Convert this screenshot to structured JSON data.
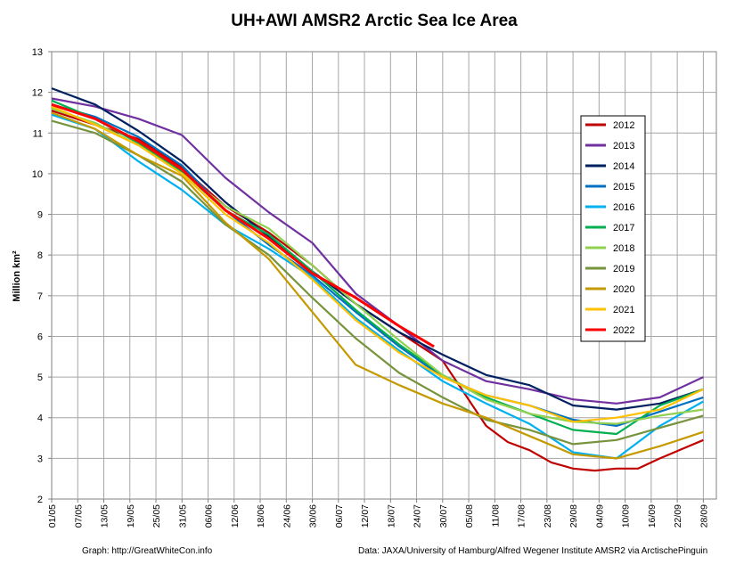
{
  "chart_data": {
    "type": "line",
    "title": "UH+AWI AMSR2 Arctic Sea Ice Area",
    "ylabel": "Million km²",
    "xlabel": "",
    "ylim": [
      2,
      13
    ],
    "y_ticks": [
      "2",
      "3",
      "4",
      "5",
      "6",
      "7",
      "8",
      "9",
      "10",
      "11",
      "12",
      "13"
    ],
    "x_ticks": [
      "01/05",
      "07/05",
      "13/05",
      "19/05",
      "25/05",
      "31/05",
      "06/06",
      "12/06",
      "18/06",
      "24/06",
      "30/06",
      "06/07",
      "12/07",
      "18/07",
      "24/07",
      "30/07",
      "05/08",
      "11/08",
      "17/08",
      "23/08",
      "29/08",
      "04/09",
      "10/09",
      "16/09",
      "22/09",
      "28/09"
    ],
    "grid": true,
    "legend_placement": "right",
    "x_unit": "day of year",
    "x_first_day": "01/05",
    "x_last_day": "01/10",
    "series": [
      {
        "name": "2012",
        "color": "#c00000",
        "points": [
          [
            0,
            11.55
          ],
          [
            10,
            11.2
          ],
          [
            20,
            10.85
          ],
          [
            30,
            10.15
          ],
          [
            40,
            9.2
          ],
          [
            50,
            8.55
          ],
          [
            60,
            7.75
          ],
          [
            70,
            6.8
          ],
          [
            80,
            6.1
          ],
          [
            90,
            5.4
          ],
          [
            95,
            4.6
          ],
          [
            100,
            3.8
          ],
          [
            105,
            3.4
          ],
          [
            110,
            3.2
          ],
          [
            115,
            2.9
          ],
          [
            120,
            2.75
          ],
          [
            125,
            2.7
          ],
          [
            130,
            2.75
          ],
          [
            135,
            2.75
          ],
          [
            140,
            3.0
          ],
          [
            150,
            3.45
          ]
        ]
      },
      {
        "name": "2013",
        "color": "#7030a0",
        "points": [
          [
            0,
            11.85
          ],
          [
            10,
            11.65
          ],
          [
            20,
            11.35
          ],
          [
            30,
            10.95
          ],
          [
            40,
            9.9
          ],
          [
            50,
            9.05
          ],
          [
            60,
            8.3
          ],
          [
            70,
            7.05
          ],
          [
            80,
            6.25
          ],
          [
            90,
            5.4
          ],
          [
            100,
            4.9
          ],
          [
            110,
            4.7
          ],
          [
            120,
            4.45
          ],
          [
            130,
            4.35
          ],
          [
            140,
            4.5
          ],
          [
            150,
            5.0
          ]
        ]
      },
      {
        "name": "2014",
        "color": "#002060",
        "points": [
          [
            0,
            12.1
          ],
          [
            10,
            11.7
          ],
          [
            20,
            11.05
          ],
          [
            30,
            10.3
          ],
          [
            40,
            9.3
          ],
          [
            50,
            8.45
          ],
          [
            60,
            7.6
          ],
          [
            70,
            6.8
          ],
          [
            80,
            6.1
          ],
          [
            90,
            5.55
          ],
          [
            100,
            5.05
          ],
          [
            110,
            4.8
          ],
          [
            120,
            4.3
          ],
          [
            130,
            4.2
          ],
          [
            140,
            4.35
          ],
          [
            150,
            4.7
          ]
        ]
      },
      {
        "name": "2015",
        "color": "#0070c0",
        "points": [
          [
            0,
            11.7
          ],
          [
            10,
            11.4
          ],
          [
            20,
            10.9
          ],
          [
            30,
            10.2
          ],
          [
            40,
            9.1
          ],
          [
            50,
            8.25
          ],
          [
            60,
            7.5
          ],
          [
            70,
            6.6
          ],
          [
            80,
            5.75
          ],
          [
            90,
            5.0
          ],
          [
            100,
            4.55
          ],
          [
            110,
            4.3
          ],
          [
            120,
            3.95
          ],
          [
            130,
            3.8
          ],
          [
            140,
            4.15
          ],
          [
            150,
            4.5
          ]
        ]
      },
      {
        "name": "2016",
        "color": "#00b0f0",
        "points": [
          [
            0,
            11.45
          ],
          [
            10,
            11.1
          ],
          [
            20,
            10.3
          ],
          [
            30,
            9.6
          ],
          [
            40,
            8.75
          ],
          [
            50,
            8.15
          ],
          [
            60,
            7.45
          ],
          [
            70,
            6.45
          ],
          [
            80,
            5.65
          ],
          [
            90,
            4.9
          ],
          [
            100,
            4.35
          ],
          [
            110,
            3.85
          ],
          [
            120,
            3.15
          ],
          [
            130,
            3.0
          ],
          [
            140,
            3.8
          ],
          [
            150,
            4.4
          ]
        ]
      },
      {
        "name": "2017",
        "color": "#00b050",
        "points": [
          [
            0,
            11.8
          ],
          [
            10,
            11.35
          ],
          [
            20,
            10.75
          ],
          [
            30,
            10.05
          ],
          [
            40,
            9.1
          ],
          [
            50,
            8.5
          ],
          [
            60,
            7.6
          ],
          [
            70,
            6.65
          ],
          [
            80,
            5.8
          ],
          [
            90,
            5.05
          ],
          [
            100,
            4.5
          ],
          [
            110,
            4.1
          ],
          [
            120,
            3.7
          ],
          [
            130,
            3.6
          ],
          [
            140,
            4.3
          ],
          [
            150,
            4.7
          ]
        ]
      },
      {
        "name": "2018",
        "color": "#92d050",
        "points": [
          [
            0,
            11.6
          ],
          [
            10,
            11.25
          ],
          [
            20,
            10.7
          ],
          [
            30,
            10.0
          ],
          [
            40,
            9.2
          ],
          [
            50,
            8.65
          ],
          [
            60,
            7.75
          ],
          [
            70,
            6.8
          ],
          [
            80,
            5.9
          ],
          [
            90,
            5.05
          ],
          [
            100,
            4.45
          ],
          [
            110,
            4.1
          ],
          [
            120,
            3.9
          ],
          [
            130,
            3.85
          ],
          [
            140,
            4.05
          ],
          [
            150,
            4.2
          ]
        ]
      },
      {
        "name": "2019",
        "color": "#77933c",
        "points": [
          [
            0,
            11.3
          ],
          [
            10,
            11.0
          ],
          [
            20,
            10.45
          ],
          [
            30,
            9.8
          ],
          [
            40,
            8.75
          ],
          [
            50,
            8.0
          ],
          [
            60,
            6.95
          ],
          [
            70,
            5.95
          ],
          [
            80,
            5.1
          ],
          [
            90,
            4.5
          ],
          [
            100,
            3.95
          ],
          [
            110,
            3.7
          ],
          [
            120,
            3.35
          ],
          [
            130,
            3.45
          ],
          [
            140,
            3.75
          ],
          [
            150,
            4.05
          ]
        ]
      },
      {
        "name": "2020",
        "color": "#c49a00",
        "points": [
          [
            0,
            11.5
          ],
          [
            10,
            11.1
          ],
          [
            20,
            10.45
          ],
          [
            30,
            9.95
          ],
          [
            40,
            8.8
          ],
          [
            50,
            7.9
          ],
          [
            60,
            6.6
          ],
          [
            70,
            5.3
          ],
          [
            80,
            4.8
          ],
          [
            90,
            4.35
          ],
          [
            100,
            4.0
          ],
          [
            110,
            3.55
          ],
          [
            120,
            3.1
          ],
          [
            130,
            3.0
          ],
          [
            140,
            3.3
          ],
          [
            150,
            3.65
          ]
        ]
      },
      {
        "name": "2021",
        "color": "#ffc000",
        "points": [
          [
            0,
            11.65
          ],
          [
            10,
            11.2
          ],
          [
            20,
            10.7
          ],
          [
            30,
            10.0
          ],
          [
            40,
            9.0
          ],
          [
            50,
            8.3
          ],
          [
            60,
            7.4
          ],
          [
            70,
            6.4
          ],
          [
            80,
            5.6
          ],
          [
            90,
            5.0
          ],
          [
            100,
            4.55
          ],
          [
            110,
            4.3
          ],
          [
            120,
            3.9
          ],
          [
            130,
            4.0
          ],
          [
            140,
            4.2
          ],
          [
            150,
            4.7
          ]
        ]
      },
      {
        "name": "2022",
        "color": "#ff0000",
        "points": [
          [
            0,
            11.7
          ],
          [
            10,
            11.35
          ],
          [
            20,
            10.8
          ],
          [
            30,
            10.1
          ],
          [
            40,
            9.1
          ],
          [
            50,
            8.4
          ],
          [
            60,
            7.55
          ],
          [
            70,
            6.95
          ],
          [
            80,
            6.25
          ],
          [
            88,
            5.75
          ]
        ]
      }
    ]
  },
  "footer": {
    "left": "Graph: http://GreatWhiteCon.info",
    "right": "Data: JAXA/University of Hamburg/Alfred Wegener Institute AMSR2 via ArctischePinguin"
  }
}
